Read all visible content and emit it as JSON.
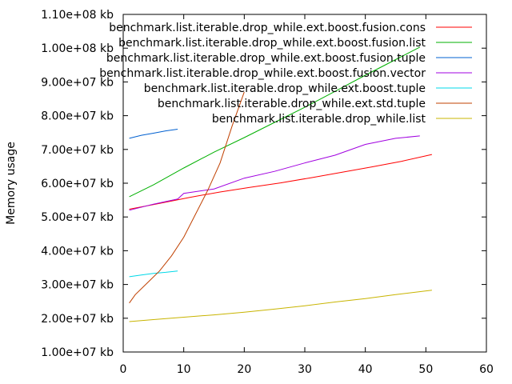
{
  "chart_data": {
    "type": "line",
    "xlabel": "",
    "ylabel": "Memory usage",
    "xlim": [
      0,
      60
    ],
    "ylim": [
      10000000,
      110000000
    ],
    "grid": false,
    "legend_position": "top-right",
    "x_ticks": [
      0,
      10,
      20,
      30,
      40,
      50,
      60
    ],
    "x_tick_labels": [
      "0",
      "10",
      "20",
      "30",
      "40",
      "50",
      "60"
    ],
    "y_ticks": [
      10000000,
      20000000,
      30000000,
      40000000,
      50000000,
      60000000,
      70000000,
      80000000,
      90000000,
      100000000,
      110000000
    ],
    "y_tick_labels": [
      "1.00e+07 kb",
      "2.00e+07 kb",
      "3.00e+07 kb",
      "4.00e+07 kb",
      "5.00e+07 kb",
      "6.00e+07 kb",
      "7.00e+07 kb",
      "8.00e+07 kb",
      "9.00e+07 kb",
      "1.00e+08 kb",
      "1.10e+08 kb"
    ],
    "series": [
      {
        "name": "benchmark.list.iterable.drop_while.ext.boost.fusion.cons",
        "color": "#ff0000",
        "x": [
          1,
          6,
          11,
          16,
          21,
          26,
          31,
          36,
          41,
          46,
          51
        ],
        "y": [
          52300000,
          54000000,
          55800000,
          57400000,
          58800000,
          60100000,
          61600000,
          63200000,
          64800000,
          66500000,
          68500000
        ]
      },
      {
        "name": "benchmark.list.iterable.drop_while.ext.boost.fusion.list",
        "color": "#00b000",
        "x": [
          1,
          5,
          10,
          15,
          20,
          25,
          30,
          35,
          40,
          45,
          49
        ],
        "y": [
          56000000,
          59500000,
          64500000,
          69200000,
          73500000,
          78000000,
          82500000,
          87200000,
          92000000,
          96600000,
          100300000
        ]
      },
      {
        "name": "benchmark.list.iterable.drop_while.ext.boost.fusion.tuple",
        "color": "#0060d0",
        "x": [
          1,
          3,
          5,
          7,
          9
        ],
        "y": [
          73300000,
          74200000,
          74800000,
          75500000,
          76000000
        ]
      },
      {
        "name": "benchmark.list.iterable.drop_while.ext.boost.fusion.vector",
        "color": "#a000e0",
        "x": [
          1,
          5,
          9,
          10,
          15,
          20,
          25,
          30,
          35,
          40,
          45,
          49
        ],
        "y": [
          52000000,
          53800000,
          55300000,
          57000000,
          58300000,
          61500000,
          63500000,
          66000000,
          68300000,
          71500000,
          73300000,
          74000000
        ]
      },
      {
        "name": "benchmark.list.iterable.drop_while.ext.boost.tuple",
        "color": "#00d8e8",
        "x": [
          1,
          3,
          5,
          7,
          9
        ],
        "y": [
          32300000,
          32800000,
          33300000,
          33600000,
          34000000
        ]
      },
      {
        "name": "benchmark.list.iterable.drop_while.ext.std.tuple",
        "color": "#c04000",
        "x": [
          1,
          2,
          4,
          6,
          8,
          10,
          12,
          14,
          16,
          18,
          20
        ],
        "y": [
          24500000,
          27000000,
          30500000,
          34000000,
          38500000,
          44000000,
          51000000,
          58000000,
          66000000,
          77000000,
          87000000
        ]
      },
      {
        "name": "benchmark.list.iterable.drop_while.list",
        "color": "#c8b400",
        "x": [
          1,
          5,
          10,
          15,
          20,
          25,
          30,
          35,
          40,
          45,
          51
        ],
        "y": [
          19000000,
          19600000,
          20300000,
          21000000,
          21800000,
          22700000,
          23700000,
          24800000,
          25800000,
          27000000,
          28300000
        ]
      }
    ]
  }
}
